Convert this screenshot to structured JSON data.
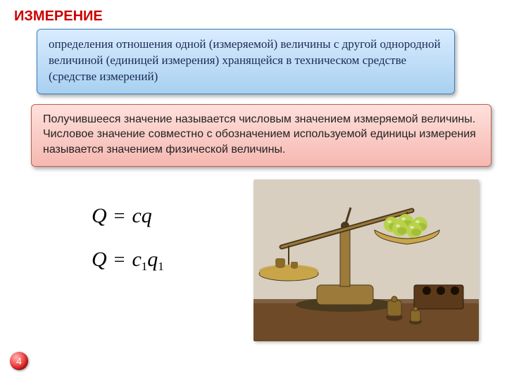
{
  "title": {
    "text": "ИЗМЕРЕНИЕ",
    "color": "#cc0000",
    "fontsize": 20
  },
  "box_blue": {
    "text": "определения отношения  одной (измеряемой) величины с другой однородной величиной (единицей измерения) хранящейся в техническом средстве (средстве измерений)",
    "bg_gradient_top": "#d9ecff",
    "bg_gradient_bottom": "#a8d0f0",
    "border_color": "#3a7fbf",
    "text_color": "#1a2a55",
    "fontsize": 17
  },
  "box_red": {
    "text": "Получившееся значение называется числовым значением измеряемой величины.\nЧисловое значение совместно с обозначением используемой единицы измерения называется значением физической величины.",
    "bg_gradient_top": "#ffe0dc",
    "bg_gradient_bottom": "#f5b8b0",
    "border_color": "#c06050",
    "text_color": "#222222",
    "fontsize": 16
  },
  "formulas": {
    "f1": {
      "lhs": "Q",
      "rhs_c": "c",
      "rhs_q": "q",
      "sub": ""
    },
    "f2": {
      "lhs": "Q",
      "rhs_c": "c",
      "rhs_q": "q",
      "sub": "1"
    },
    "fontsize": 30
  },
  "illustration": {
    "description": "balance-scale with apples and brass weights",
    "background": "#d8cfc0",
    "table_color": "#6e4a28",
    "scale_metal": "#9c7a3a",
    "scale_dark": "#4a3a1e",
    "pan_color": "#c9a54a",
    "apple_color": "#b8d24a",
    "apple_shadow": "#7a9a20",
    "weight_color": "#8a6a2a",
    "box_color": "#5a3a1a"
  },
  "page_number": "4"
}
